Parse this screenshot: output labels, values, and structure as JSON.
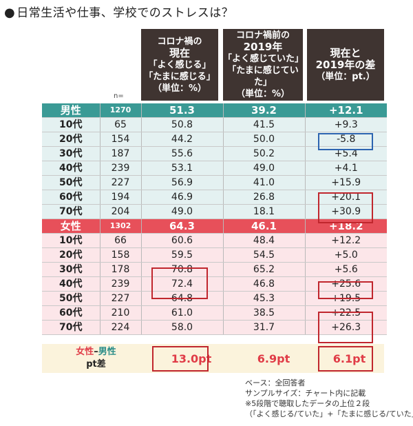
{
  "title": "日常生活や仕事、学校でのストレスは？",
  "title_bullet": "●",
  "headers": [
    {
      "lines": [
        "コロナ禍の",
        "現在",
        "「よく感じる」",
        "「たまに感じる」",
        "（単位：%）"
      ]
    },
    {
      "lines": [
        "コロナ禍前の",
        "2019年",
        "「よく感じていた」",
        "「たまに感じていた」",
        "（単位：%）"
      ]
    },
    {
      "lines": [
        "現在と",
        "2019年の差",
        "（単位：pt.）"
      ]
    }
  ],
  "n_label": "n=",
  "chart_data": {
    "type": "table",
    "columns": [
      "現在",
      "2019年",
      "差"
    ],
    "rows": [
      {
        "group": "male",
        "summary": true,
        "label": "男性",
        "n": "1270",
        "now": "51.3",
        "y2019": "39.2",
        "diff": "+12.1"
      },
      {
        "group": "male",
        "label": "10代",
        "n": "65",
        "now": "50.8",
        "y2019": "41.5",
        "diff": "+9.3"
      },
      {
        "group": "male",
        "label": "20代",
        "n": "154",
        "now": "44.2",
        "y2019": "50.0",
        "diff": "-5.8"
      },
      {
        "group": "male",
        "label": "30代",
        "n": "187",
        "now": "55.6",
        "y2019": "50.2",
        "diff": "+5.4"
      },
      {
        "group": "male",
        "label": "40代",
        "n": "239",
        "now": "53.1",
        "y2019": "49.0",
        "diff": "+4.1"
      },
      {
        "group": "male",
        "label": "50代",
        "n": "227",
        "now": "56.9",
        "y2019": "41.0",
        "diff": "+15.9"
      },
      {
        "group": "male",
        "label": "60代",
        "n": "194",
        "now": "46.9",
        "y2019": "26.8",
        "diff": "+20.1"
      },
      {
        "group": "male",
        "label": "70代",
        "n": "204",
        "now": "49.0",
        "y2019": "18.1",
        "diff": "+30.9"
      },
      {
        "group": "female",
        "summary": true,
        "label": "女性",
        "n": "1302",
        "now": "64.3",
        "y2019": "46.1",
        "diff": "+18.2"
      },
      {
        "group": "female",
        "label": "10代",
        "n": "66",
        "now": "60.6",
        "y2019": "48.4",
        "diff": "+12.2"
      },
      {
        "group": "female",
        "label": "20代",
        "n": "158",
        "now": "59.5",
        "y2019": "54.5",
        "diff": "+5.0"
      },
      {
        "group": "female",
        "label": "30代",
        "n": "178",
        "now": "70.8",
        "y2019": "65.2",
        "diff": "+5.6"
      },
      {
        "group": "female",
        "label": "40代",
        "n": "239",
        "now": "72.4",
        "y2019": "46.8",
        "diff": "+25.6"
      },
      {
        "group": "female",
        "label": "50代",
        "n": "227",
        "now": "64.8",
        "y2019": "45.3",
        "diff": "+19.5"
      },
      {
        "group": "female",
        "label": "60代",
        "n": "210",
        "now": "61.0",
        "y2019": "38.5",
        "diff": "+22.5"
      },
      {
        "group": "female",
        "label": "70代",
        "n": "224",
        "now": "58.0",
        "y2019": "31.7",
        "diff": "+26.3"
      }
    ],
    "gap_row": {
      "label_female": "女性",
      "label_dash": "–",
      "label_male": "男性",
      "label_line2": "pt差",
      "now": "13.0pt",
      "y2019": "6.9pt",
      "diff": "6.1pt"
    },
    "colors": {
      "male_summary": "#3a9a95",
      "male_rows": "#e4f1f1",
      "female_summary": "#e7505a",
      "female_rows": "#fce6e9",
      "header": "#3f3431",
      "highlight": "#c0262d",
      "highlight_blue": "#2c64b0"
    }
  },
  "notes": [
    "ベース：全回答者",
    "サンプルサイズ：チャート内に記載",
    "※5段階で聴取したデータの上位２段",
    "（「よく感じる/ていた」+「たまに感じる/ていた」）"
  ]
}
